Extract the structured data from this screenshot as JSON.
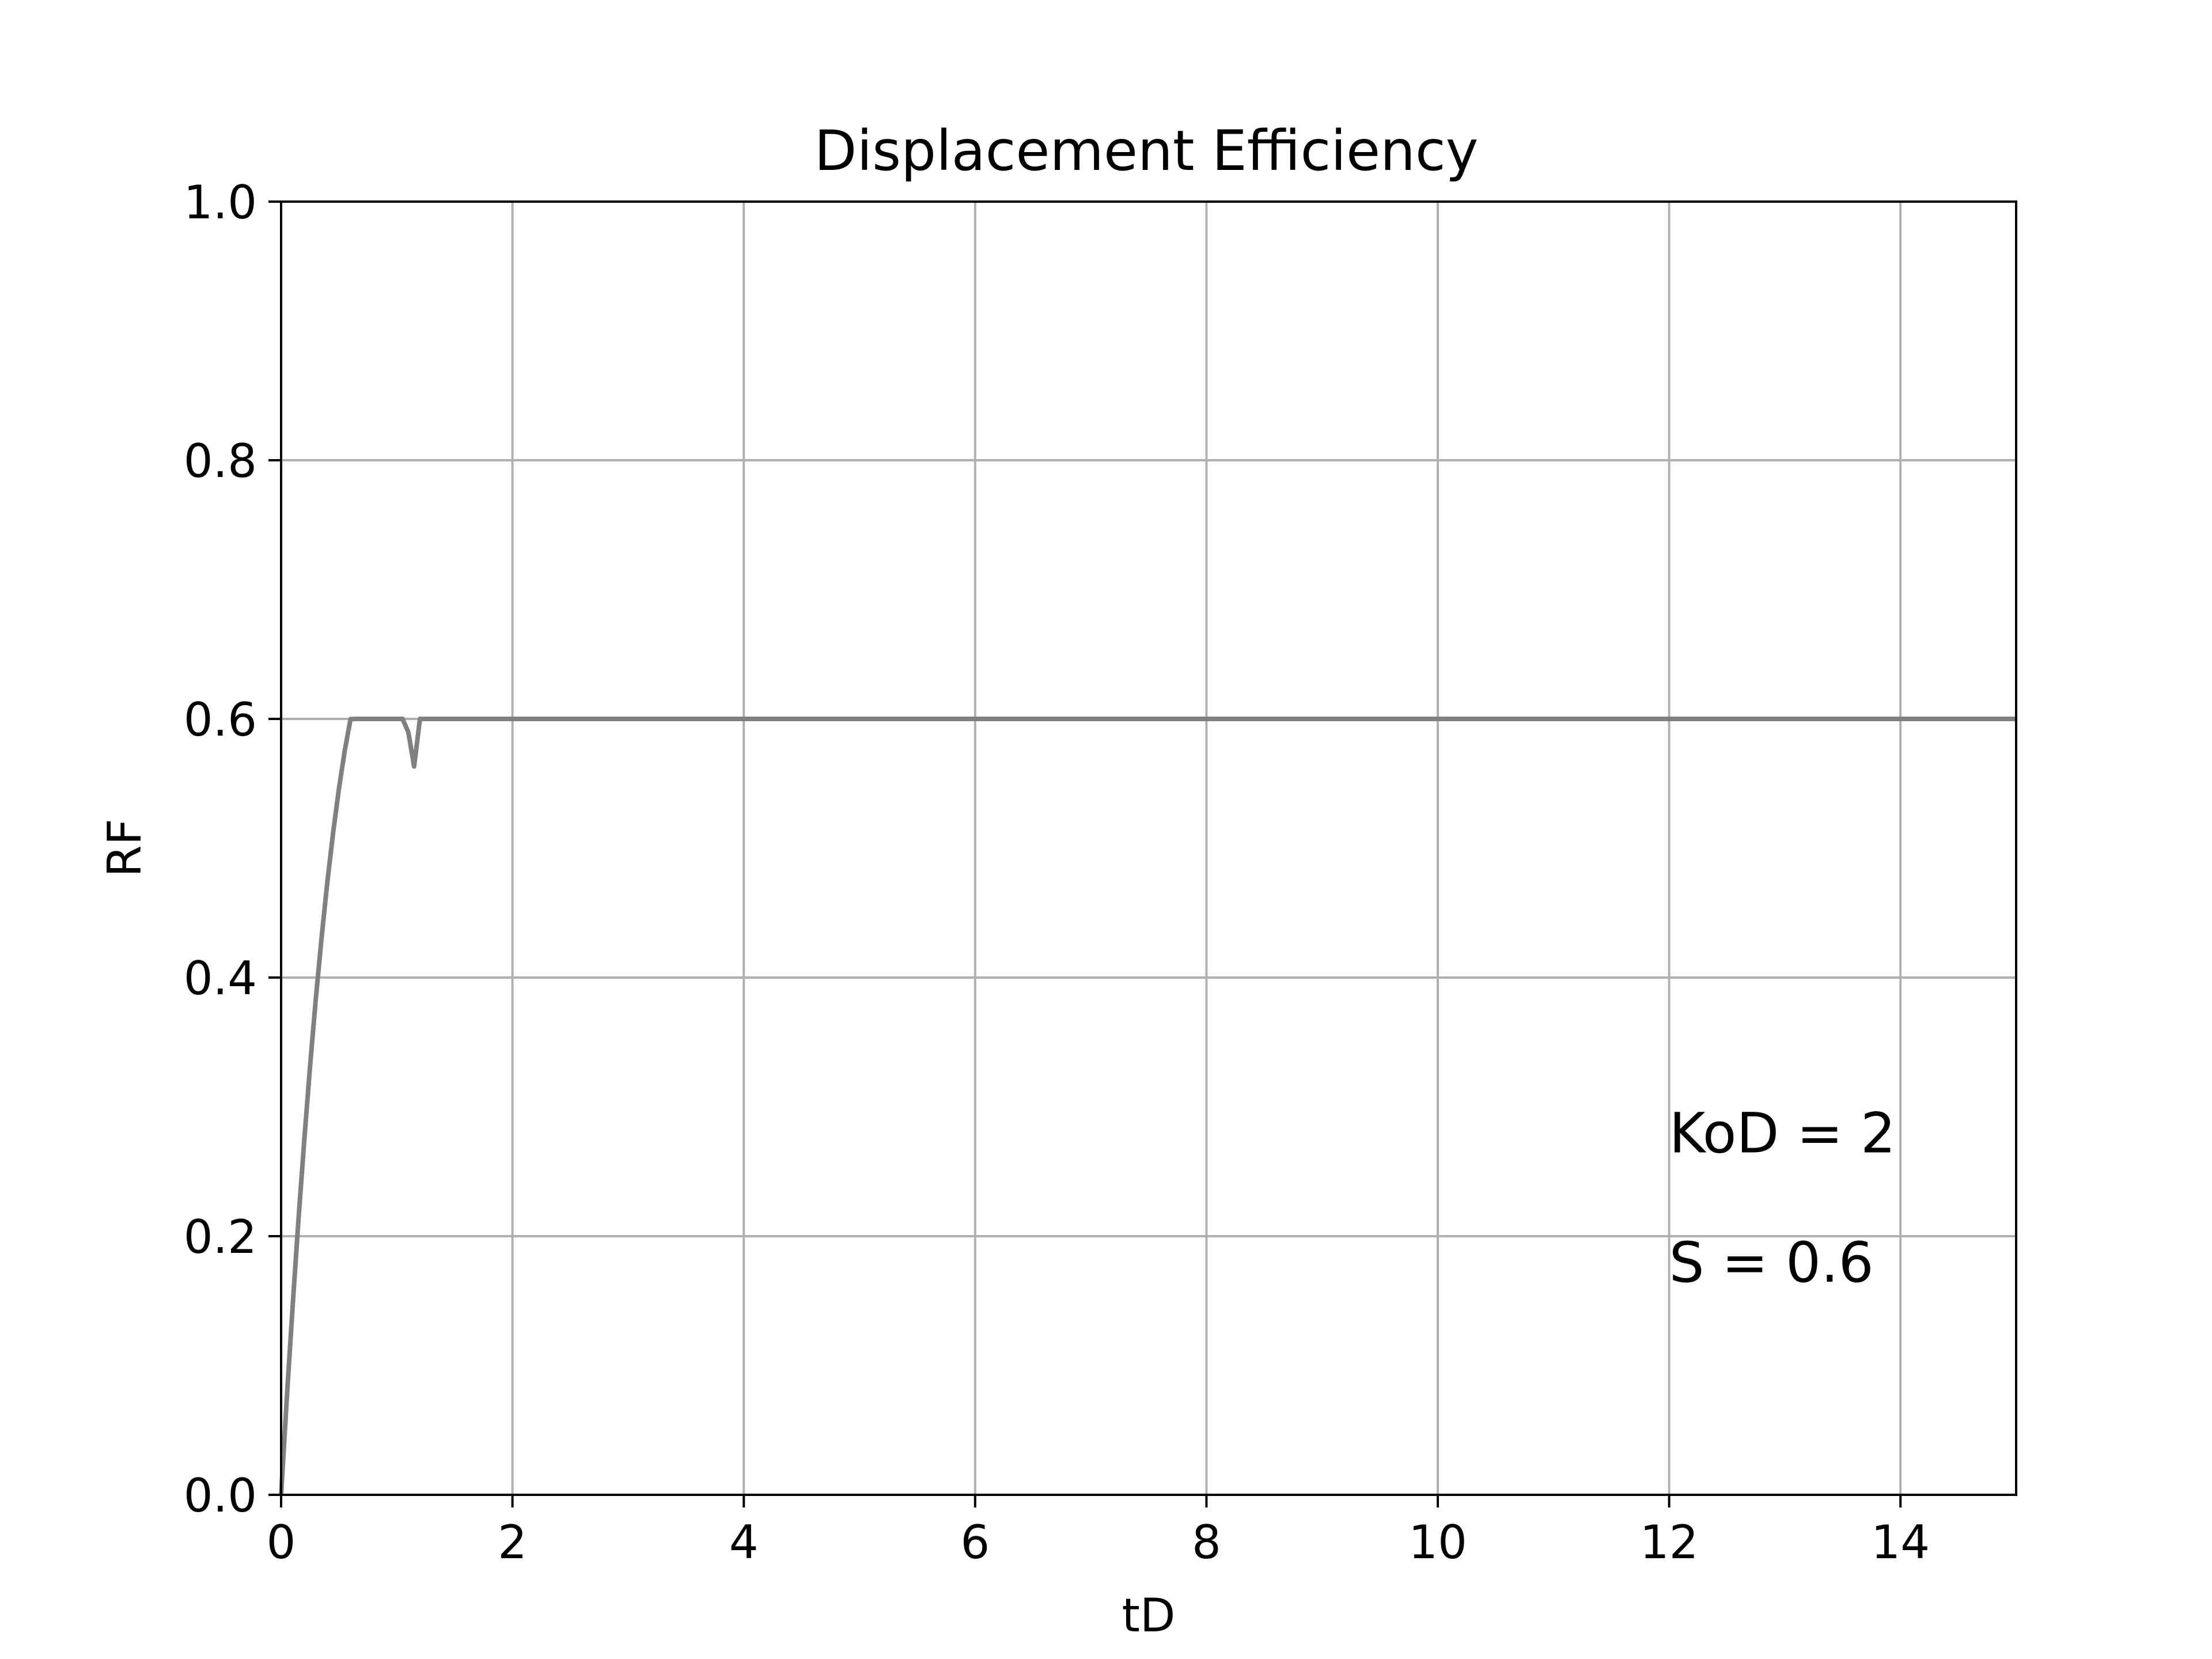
{
  "chart_data": {
    "type": "line",
    "title": "Displacement Efficiency",
    "xlabel": "tD",
    "ylabel": "RF",
    "xlim": [
      0,
      15
    ],
    "ylim": [
      0,
      1.0
    ],
    "xticks": [
      "0",
      "2",
      "4",
      "6",
      "8",
      "10",
      "12",
      "14"
    ],
    "xtick_values": [
      0,
      2,
      4,
      6,
      8,
      10,
      12,
      14
    ],
    "yticks": [
      "0.0",
      "0.2",
      "0.4",
      "0.6",
      "0.8",
      "1.0"
    ],
    "ytick_values": [
      0,
      0.2,
      0.4,
      0.6,
      0.8,
      1.0
    ],
    "grid": true,
    "series": [
      {
        "color": "#808080",
        "x": [
          0,
          0.05,
          0.1,
          0.15,
          0.2,
          0.25,
          0.3,
          0.35,
          0.4,
          0.45,
          0.5,
          0.55,
          0.6,
          0.65,
          0.7,
          0.75,
          0.8,
          0.85,
          0.9,
          0.95,
          1.0,
          1.05,
          1.1,
          1.15,
          1.2,
          2,
          4,
          6,
          8,
          10,
          12,
          14,
          15
        ],
        "y": [
          0,
          0.0756,
          0.1464,
          0.2126,
          0.2742,
          0.3311,
          0.3834,
          0.431,
          0.474,
          0.5124,
          0.5461,
          0.5752,
          0.5998,
          0.6196,
          0.6348,
          0.6454,
          0.6513,
          0.6527,
          0.6493,
          0.6413,
          0.6288,
          0.6116,
          0.5897,
          0.5632,
          0.6,
          0.6,
          0.6,
          0.6,
          0.6,
          0.6,
          0.6,
          0.6,
          0.6
        ]
      }
    ],
    "annotations": [
      {
        "text": "KoD = 2",
        "x": 12,
        "y": 0.28
      },
      {
        "text": "S = 0.6",
        "x": 12,
        "y": 0.18
      }
    ]
  }
}
